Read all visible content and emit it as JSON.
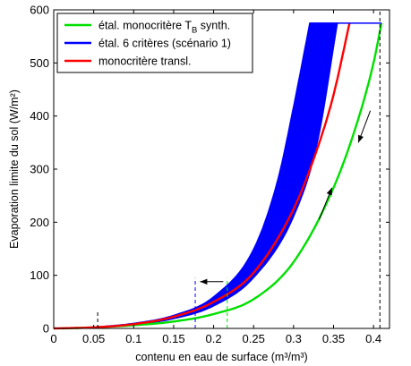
{
  "chart_data": {
    "type": "line",
    "xlabel": "contenu en eau de surface (m³/m³)",
    "ylabel": "Evaporation limite du sol (W/m²)",
    "xlim": [
      0,
      0.42
    ],
    "ylim": [
      0,
      600
    ],
    "xticks": [
      "0",
      "0.05",
      "0.1",
      "0.15",
      "0.2",
      "0.25",
      "0.3",
      "0.35",
      "0.4"
    ],
    "yticks": [
      "0",
      "100",
      "200",
      "300",
      "400",
      "500",
      "600"
    ],
    "legend_position": "top-left",
    "legend": [
      {
        "label": "étal. monocritère T",
        "sub": "B",
        "suffix": " synth.",
        "color": "#00e000"
      },
      {
        "label": "étal. 6 critères (scénario 1)",
        "sub": "",
        "suffix": "",
        "color": "#0000ff"
      },
      {
        "label": "monocritère transl.",
        "sub": "",
        "suffix": "",
        "color": "#ff0000"
      }
    ],
    "series": [
      {
        "color": "#00e000",
        "x": [
          0.01,
          0.05,
          0.1,
          0.15,
          0.2,
          0.25,
          0.3,
          0.35,
          0.38,
          0.4,
          0.41
        ],
        "y": [
          0,
          2,
          6,
          13,
          27,
          55,
          125,
          265,
          390,
          500,
          575
        ]
      },
      {
        "color": "#ff0000",
        "x": [
          0.0,
          0.05,
          0.1,
          0.15,
          0.2,
          0.25,
          0.3,
          0.33,
          0.35,
          0.37
        ],
        "y": [
          0,
          2,
          8,
          22,
          50,
          105,
          225,
          340,
          440,
          575
        ]
      },
      {
        "color": "#0000ff",
        "band": true,
        "x_lower": [
          0.0,
          0.05,
          0.1,
          0.15,
          0.2,
          0.25,
          0.28,
          0.3,
          0.32
        ],
        "y_lower": [
          0,
          3,
          10,
          25,
          60,
          150,
          280,
          420,
          575
        ],
        "x_upper": [
          0.0,
          0.05,
          0.1,
          0.15,
          0.2,
          0.25,
          0.3,
          0.33,
          0.355
        ],
        "y_upper": [
          0,
          2,
          7,
          18,
          42,
          95,
          210,
          350,
          575
        ],
        "plateau_y": 575
      }
    ],
    "vlines": [
      {
        "x": 0.055,
        "y_top": 35,
        "color": "#000000"
      },
      {
        "x": 0.177,
        "y_top": 95,
        "color": "#0000ff"
      },
      {
        "x": 0.217,
        "y_top": 95,
        "color": "#00e000"
      },
      {
        "x": 0.408,
        "y_top": 600,
        "color": "#000000"
      }
    ],
    "arrows": [
      {
        "x1": 0.212,
        "y1": 88,
        "x2": 0.183,
        "y2": 88
      },
      {
        "x1": 0.332,
        "y1": 205,
        "x2": 0.348,
        "y2": 265
      },
      {
        "x1": 0.396,
        "y1": 410,
        "x2": 0.381,
        "y2": 350
      }
    ]
  }
}
